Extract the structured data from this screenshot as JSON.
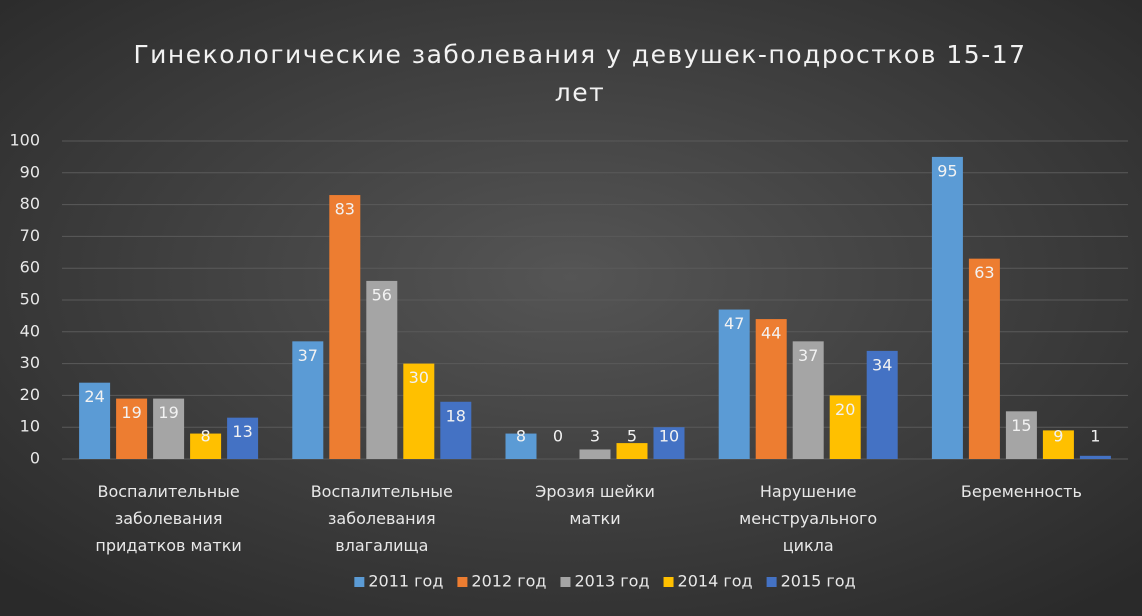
{
  "chart_data": {
    "type": "bar",
    "title": "Гинекологические заболевания у девушек-подростков 15-17 лет",
    "categories": [
      "Воспалительные заболевания придатков матки",
      "Воспалительные заболевания влагалища",
      "Эрозия шейки матки",
      "Нарушение менструального цикла",
      "Беременность"
    ],
    "series": [
      {
        "name": "2011 год",
        "color": "#5b9bd5",
        "values": [
          24,
          37,
          8,
          47,
          95
        ]
      },
      {
        "name": "2012 год",
        "color": "#ed7d31",
        "values": [
          19,
          83,
          0,
          44,
          63
        ]
      },
      {
        "name": "2013 год",
        "color": "#a5a5a5",
        "values": [
          19,
          56,
          3,
          37,
          15
        ]
      },
      {
        "name": "2014 год",
        "color": "#ffc000",
        "values": [
          8,
          30,
          5,
          20,
          9
        ]
      },
      {
        "name": "2015 год",
        "color": "#4472c4",
        "values": [
          13,
          18,
          10,
          34,
          1
        ]
      }
    ],
    "ylim": [
      0,
      100
    ],
    "yticks": [
      0,
      10,
      20,
      30,
      40,
      50,
      60,
      70,
      80,
      90,
      100
    ],
    "grid": true,
    "legend": "bottom"
  }
}
